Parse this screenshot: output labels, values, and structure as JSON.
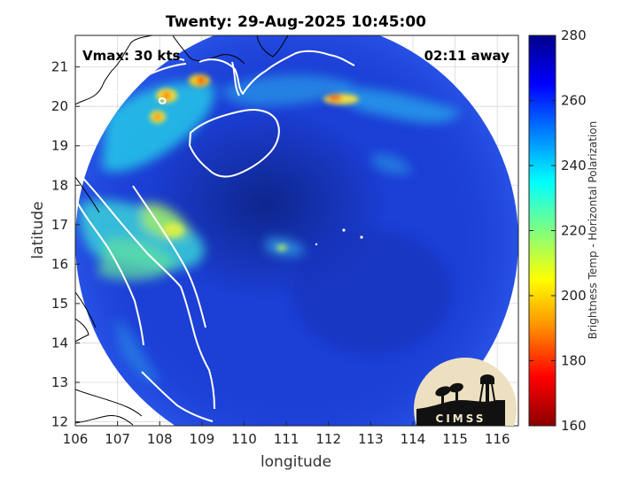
{
  "title": "Twenty: 29-Aug-2025 10:45:00",
  "vmax_label": "Vmax: 30 kts",
  "time_away": "02:11 away",
  "axes": {
    "xlabel": "longitude",
    "ylabel": "latitude",
    "xlim": [
      106,
      116.5
    ],
    "ylim": [
      11.9,
      21.8
    ],
    "xticks": [
      "106",
      "107",
      "108",
      "109",
      "110",
      "111",
      "112",
      "113",
      "114",
      "115",
      "116"
    ],
    "yticks": [
      "12",
      "13",
      "14",
      "15",
      "16",
      "17",
      "18",
      "19",
      "20",
      "21"
    ],
    "grid": true
  },
  "colorbar": {
    "label": "Brightness Temp - Horizontal Polarization",
    "ticks": [
      "160",
      "180",
      "200",
      "220",
      "240",
      "260",
      "280"
    ],
    "range": [
      160,
      280
    ],
    "colors": [
      "#8b0000",
      "#ff0000",
      "#ff8c00",
      "#ffff00",
      "#80ff80",
      "#00ffff",
      "#0080ff",
      "#0000ff",
      "#00008b"
    ]
  },
  "swath": {
    "center_lon": 111.2,
    "center_lat": 16.6,
    "radius_deg": 4.5,
    "base_color": "#1c3fd6",
    "dark_core_color": "#0d2488"
  },
  "logo": {
    "text": "CIMSS"
  }
}
